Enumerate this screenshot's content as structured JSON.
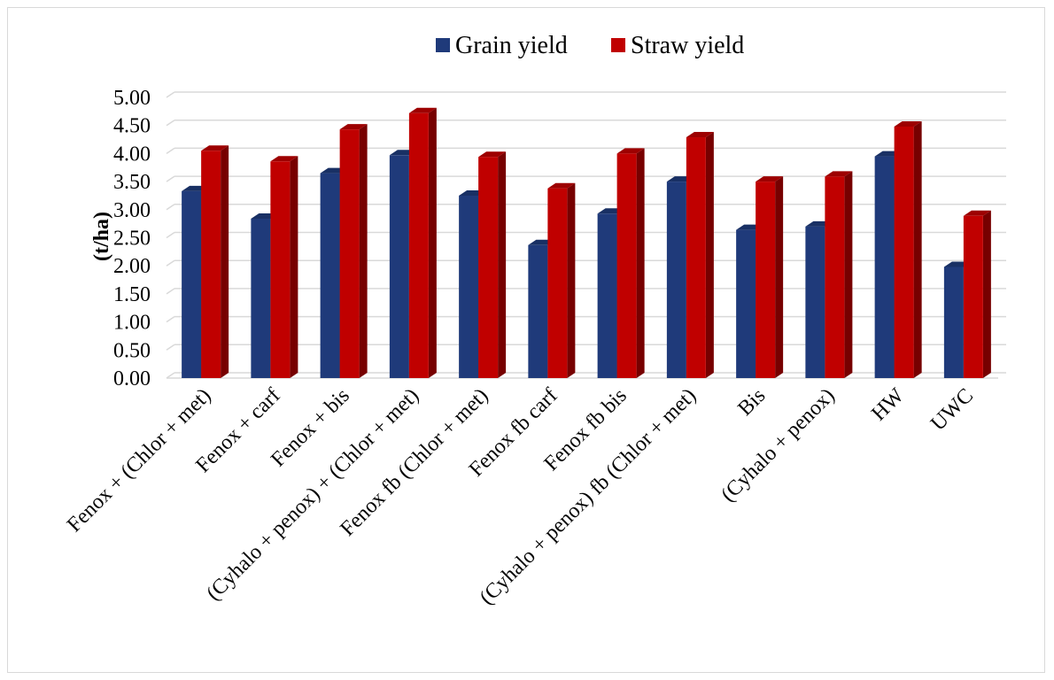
{
  "chart_data": {
    "type": "bar",
    "title": "",
    "xlabel": "",
    "ylabel": "(t/ha)",
    "ylim": [
      0,
      5
    ],
    "yticks": [
      "0.00",
      "0.50",
      "1.00",
      "1.50",
      "2.00",
      "2.50",
      "3.00",
      "3.50",
      "4.00",
      "4.50",
      "5.00"
    ],
    "grid": true,
    "legend_position": "top",
    "categories": [
      "Fenox + (Chlor + met)",
      "Fenox + carf",
      "Fenox + bis",
      "(Cyhalo + penox) + (Chlor + met)",
      "Fenox fb (Chlor + met)",
      "Fenox fb carf",
      "Fenox fb bis",
      "(Cyhalo + penox) fb (Chlor + met)",
      "Bis",
      "(Cyhalo + penox)",
      "HW",
      "UWC"
    ],
    "series": [
      {
        "name": "Grain yield",
        "color": "#1f3a7a",
        "values": [
          3.33,
          2.84,
          3.65,
          3.97,
          3.25,
          2.37,
          2.93,
          3.5,
          2.64,
          2.7,
          3.95,
          1.98
        ]
      },
      {
        "name": "Straw yield",
        "color": "#c00000",
        "values": [
          4.05,
          3.86,
          4.43,
          4.72,
          3.94,
          3.38,
          4.0,
          4.29,
          3.5,
          3.59,
          4.48,
          2.89
        ]
      }
    ]
  }
}
